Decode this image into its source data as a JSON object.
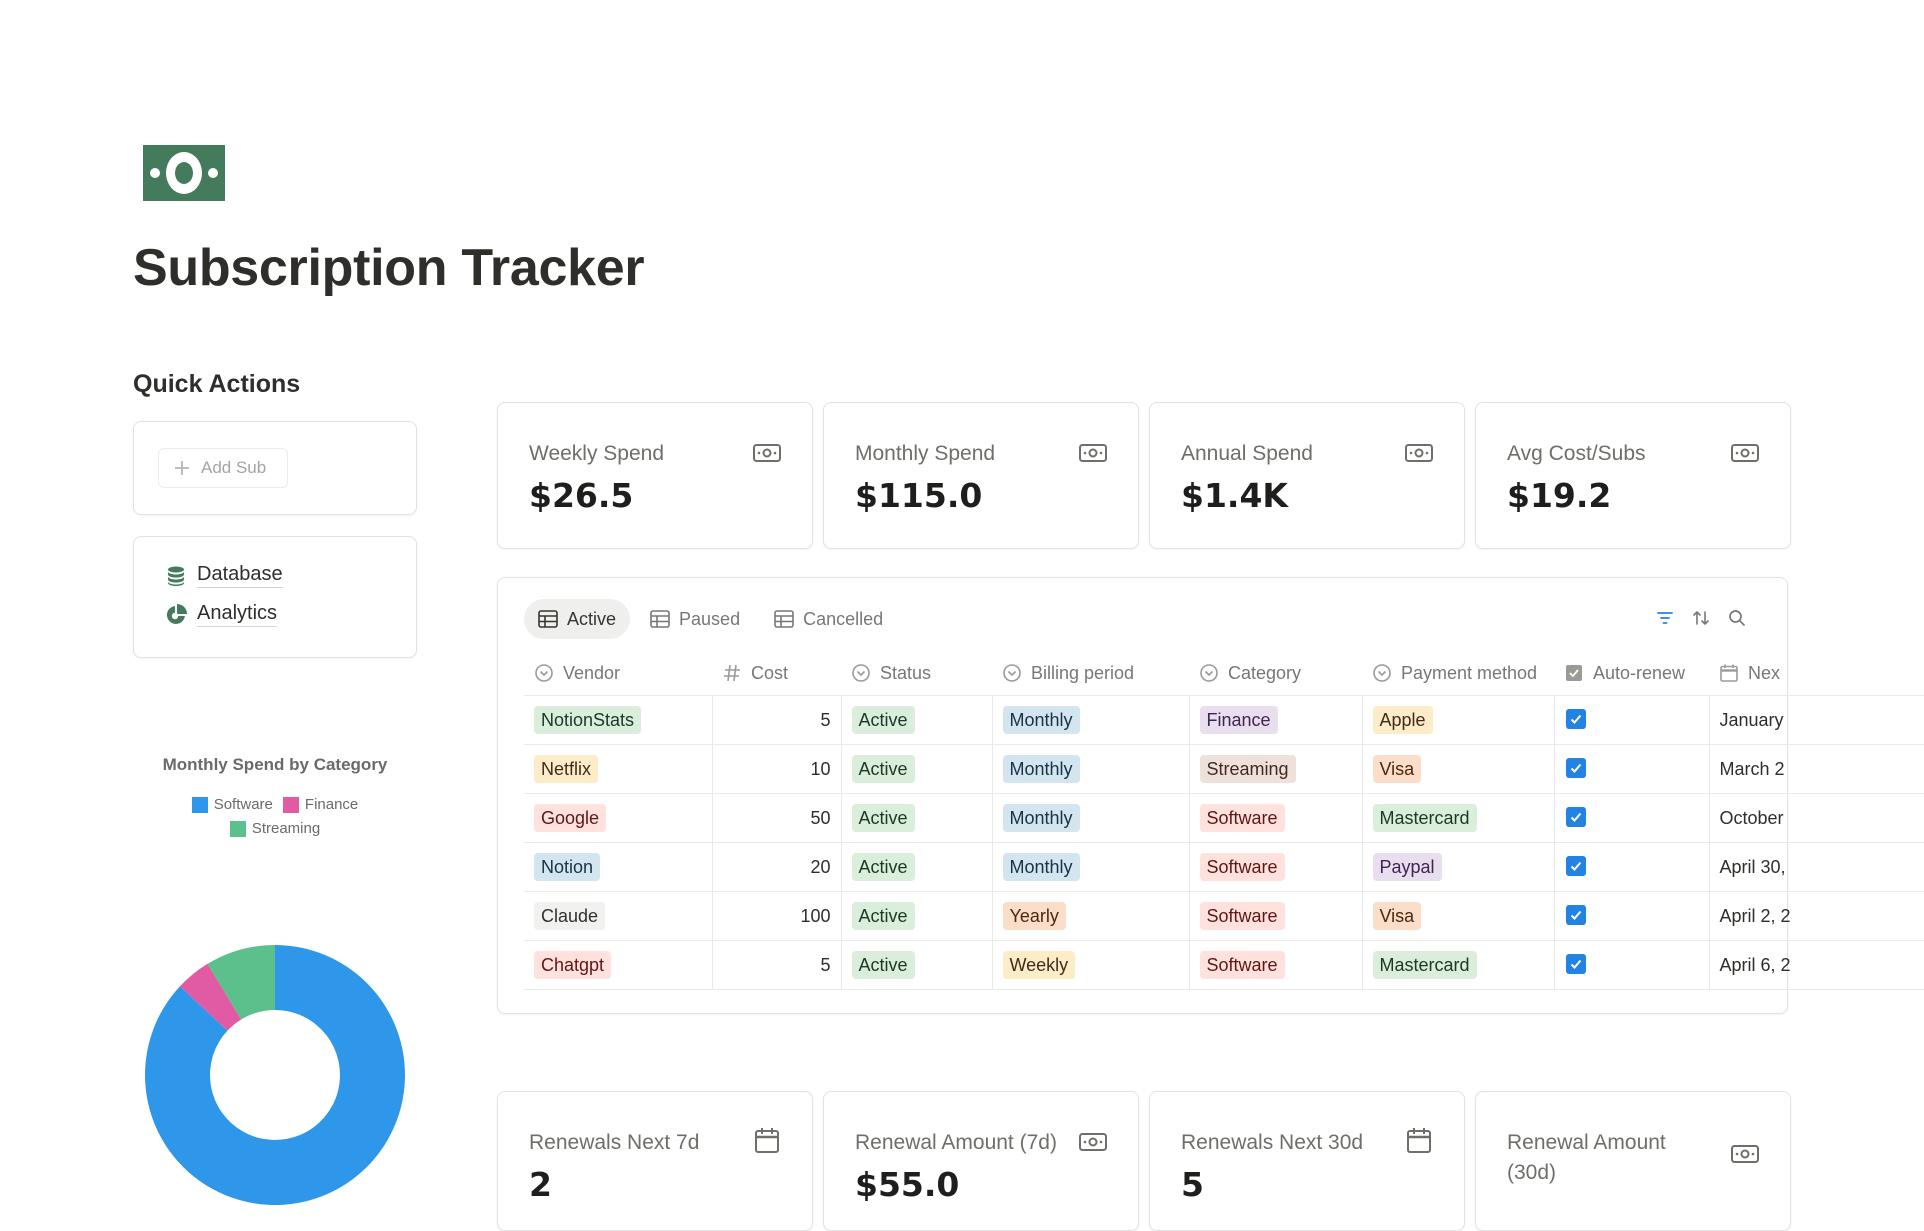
{
  "page": {
    "title": "Subscription Tracker",
    "icon": "money-bill-icon"
  },
  "quick_actions": {
    "heading": "Quick Actions",
    "add_button": "Add Sub",
    "links": [
      {
        "label": "Database",
        "icon": "database-icon"
      },
      {
        "label": "Analytics",
        "icon": "analytics-icon"
      }
    ]
  },
  "stats_top": [
    {
      "label": "Weekly Spend",
      "value": "$26.5",
      "icon": "money-icon"
    },
    {
      "label": "Monthly Spend",
      "value": "$115.0",
      "icon": "money-icon"
    },
    {
      "label": "Annual Spend",
      "value": "$1.4K",
      "icon": "money-icon"
    },
    {
      "label": "Avg Cost/Subs",
      "value": "$19.2",
      "icon": "money-icon"
    }
  ],
  "stats_bottom": [
    {
      "label": "Renewals Next 7d",
      "value": "2",
      "icon": "calendar-icon"
    },
    {
      "label": "Renewal Amount (7d)",
      "value": "$55.0",
      "icon": "money-icon"
    },
    {
      "label": "Renewals Next 30d",
      "value": "5",
      "icon": "calendar-icon"
    },
    {
      "label": "Renewal Amount (30d)",
      "value": "",
      "icon": "money-icon"
    }
  ],
  "database": {
    "tabs": [
      {
        "label": "Active",
        "selected": true
      },
      {
        "label": "Paused",
        "selected": false
      },
      {
        "label": "Cancelled",
        "selected": false
      }
    ],
    "columns": [
      "Vendor",
      "Cost",
      "Status",
      "Billing period",
      "Category",
      "Payment method",
      "Auto-renew",
      "Nex"
    ],
    "rows": [
      {
        "vendor": "NotionStats",
        "cost": "5",
        "status": "Active",
        "billing": "Monthly",
        "category": "Finance",
        "payment": "Apple",
        "auto_renew": true,
        "next": "January"
      },
      {
        "vendor": "Netflix",
        "cost": "10",
        "status": "Active",
        "billing": "Monthly",
        "category": "Streaming",
        "payment": "Visa",
        "auto_renew": true,
        "next": "March 2"
      },
      {
        "vendor": "Google",
        "cost": "50",
        "status": "Active",
        "billing": "Monthly",
        "category": "Software",
        "payment": "Mastercard",
        "auto_renew": true,
        "next": "October"
      },
      {
        "vendor": "Notion",
        "cost": "20",
        "status": "Active",
        "billing": "Monthly",
        "category": "Software",
        "payment": "Paypal",
        "auto_renew": true,
        "next": "April 30,"
      },
      {
        "vendor": "Claude",
        "cost": "100",
        "status": "Active",
        "billing": "Yearly",
        "category": "Software",
        "payment": "Visa",
        "auto_renew": true,
        "next": "April 2, 2"
      },
      {
        "vendor": "Chatgpt",
        "cost": "5",
        "status": "Active",
        "billing": "Weekly",
        "category": "Software",
        "payment": "Mastercard",
        "auto_renew": true,
        "next": "April 6, 2"
      }
    ],
    "tag_colors": {
      "vendor": {
        "NotionStats": [
          "#dbeddb",
          "#1c3829"
        ],
        "Netflix": [
          "#fdecc8",
          "#402c1b"
        ],
        "Google": [
          "#ffe2dd",
          "#5d1715"
        ],
        "Notion": [
          "#d3e5ef",
          "#183347"
        ],
        "Claude": [
          "#f1f1ef",
          "#32302c"
        ],
        "Chatgpt": [
          "#ffe2dd",
          "#5d1715"
        ]
      },
      "status": {
        "Active": [
          "#dbeddb",
          "#1c3829"
        ]
      },
      "billing": {
        "Monthly": [
          "#d3e5ef",
          "#183347"
        ],
        "Yearly": [
          "#fadec9",
          "#49290e"
        ],
        "Weekly": [
          "#fdecc8",
          "#402c1b"
        ]
      },
      "category": {
        "Finance": [
          "#e8deee",
          "#412454"
        ],
        "Streaming": [
          "#eee0da",
          "#442a1e"
        ],
        "Software": [
          "#ffe2dd",
          "#5d1715"
        ]
      },
      "payment": {
        "Apple": [
          "#fdecc8",
          "#402c1b"
        ],
        "Visa": [
          "#fadec9",
          "#49290e"
        ],
        "Mastercard": [
          "#dbeddb",
          "#1c3829"
        ],
        "Paypal": [
          "#e8deee",
          "#412454"
        ]
      }
    }
  },
  "chart": {
    "title": "Monthly Spend by Category",
    "chart_data": {
      "type": "pie",
      "title": "Monthly Spend by Category",
      "series": [
        {
          "name": "Software",
          "value": 100,
          "color": "#2e97ea"
        },
        {
          "name": "Finance",
          "value": 5,
          "color": "#e05ba4"
        },
        {
          "name": "Streaming",
          "value": 10,
          "color": "#5cc08d"
        }
      ],
      "donut": true,
      "legend_position": "top"
    }
  },
  "colors": {
    "accent_blue": "#2383e2",
    "brand_green": "#447b5c"
  }
}
